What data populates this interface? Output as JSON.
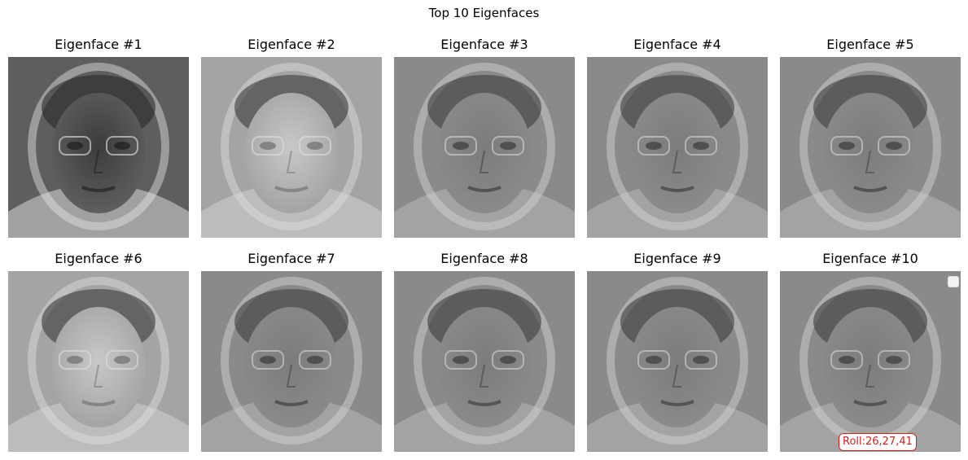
{
  "figure": {
    "title": "Top 10 Eigenfaces"
  },
  "panels": [
    {
      "title": "Eigenface #1",
      "icon": "eigenface-image",
      "tone": "dark"
    },
    {
      "title": "Eigenface #2",
      "icon": "eigenface-image",
      "tone": "light"
    },
    {
      "title": "Eigenface #3",
      "icon": "eigenface-image",
      "tone": "mid"
    },
    {
      "title": "Eigenface #4",
      "icon": "eigenface-image",
      "tone": "mid"
    },
    {
      "title": "Eigenface #5",
      "icon": "eigenface-image",
      "tone": "mid"
    },
    {
      "title": "Eigenface #6",
      "icon": "eigenface-image",
      "tone": "light"
    },
    {
      "title": "Eigenface #7",
      "icon": "eigenface-image",
      "tone": "mid"
    },
    {
      "title": "Eigenface #8",
      "icon": "eigenface-image",
      "tone": "mid"
    },
    {
      "title": "Eigenface #9",
      "icon": "eigenface-image",
      "tone": "mid"
    },
    {
      "title": "Eigenface #10",
      "icon": "eigenface-image",
      "tone": "mid"
    }
  ],
  "annotation": {
    "text": "Roll:26,27,41",
    "color": "#d62020"
  },
  "colors": {
    "background": "#ffffff",
    "accent": "#d62020"
  }
}
